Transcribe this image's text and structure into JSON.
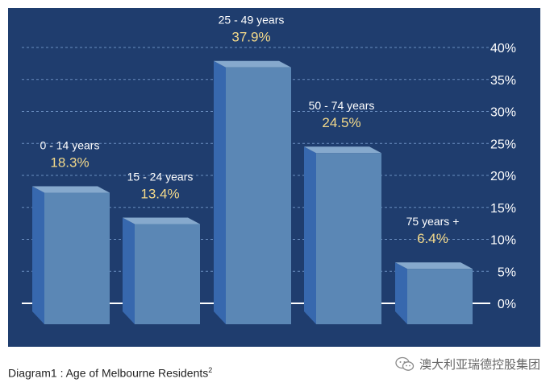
{
  "chart_data": {
    "type": "bar",
    "title": "",
    "categories": [
      "0 - 14 years",
      "15 - 24 years",
      "25 - 49 years",
      "50 - 74 years",
      "75 years +"
    ],
    "values": [
      18.3,
      13.4,
      37.9,
      24.5,
      6.4
    ],
    "value_labels": [
      "18.3%",
      "13.4%",
      "37.9%",
      "24.5%",
      "6.4%"
    ],
    "y_ticks": [
      "0%",
      "5%",
      "10%",
      "15%",
      "20%",
      "25%",
      "30%",
      "35%",
      "40%"
    ],
    "ylim": [
      0,
      40
    ],
    "grid": true,
    "colors": {
      "background": "#1f3d6e",
      "bar_front": "#5b87b5",
      "bar_top": "#86a9cd",
      "bar_side": "#3768ae",
      "category_label": "#ffffff",
      "value_label": "#f3d98a",
      "grid": "#6a8ec0"
    }
  },
  "caption": {
    "text": "Diagram1 : Age of Melbourne Residents",
    "superscript": "2"
  },
  "watermark": {
    "text": "澳大利亚瑞德控股集团",
    "icon": "wechat-icon"
  }
}
